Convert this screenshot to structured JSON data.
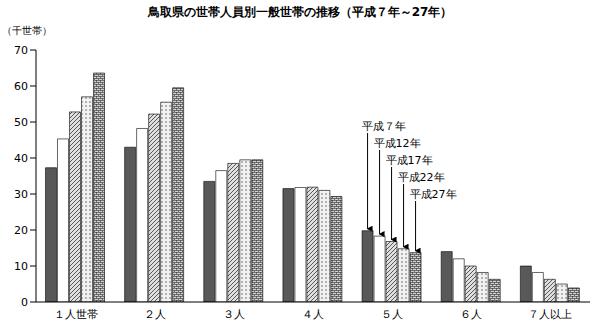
{
  "chart_data": {
    "type": "bar",
    "title": "鳥取県の世帯人員別一般世帯の推移（平成７年～27年）",
    "y_label": "（千世帯）",
    "categories": [
      "１人世帯",
      "２人",
      "３人",
      "４人",
      "５人",
      "６人",
      "７人以上"
    ],
    "series": [
      {
        "name": "平成７年",
        "color": "#595959",
        "values": [
          37.3,
          43.0,
          33.5,
          31.5,
          19.8,
          14.0,
          10.0
        ]
      },
      {
        "name": "平成12年",
        "color": "#ffffff",
        "values": [
          45.3,
          48.2,
          36.5,
          31.8,
          18.3,
          12.0,
          8.2
        ]
      },
      {
        "name": "平成17年",
        "color": "#e0e0e0",
        "values": [
          52.8,
          52.2,
          38.5,
          31.9,
          16.8,
          10.0,
          6.3
        ]
      },
      {
        "name": "平成22年",
        "color": "#f2f2f2",
        "values": [
          57.0,
          55.5,
          39.5,
          31.0,
          14.8,
          8.2,
          5.0
        ]
      },
      {
        "name": "平成27年",
        "color": "#d0d0d0",
        "values": [
          63.6,
          59.5,
          39.5,
          29.3,
          13.7,
          6.3,
          3.9
        ]
      }
    ],
    "ylim": [
      0,
      70
    ],
    "yticks": [
      0,
      10,
      20,
      30,
      40,
      50,
      60,
      70
    ],
    "grid": false
  }
}
